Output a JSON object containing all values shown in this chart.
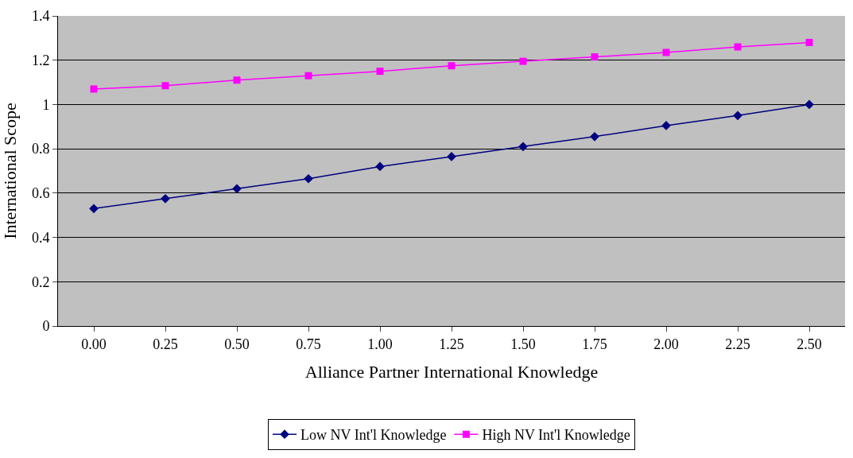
{
  "chart_data": {
    "type": "line",
    "xlabel": "Alliance Partner International Knowledge",
    "ylabel": "International Scope",
    "categories": [
      "0.00",
      "0.25",
      "0.50",
      "0.75",
      "1.00",
      "1.25",
      "1.50",
      "1.75",
      "2.00",
      "2.25",
      "2.50"
    ],
    "series": [
      {
        "name": "Low NV Int'l Knowledge",
        "color": "#000080",
        "marker": "diamond",
        "values": [
          0.53,
          0.575,
          0.62,
          0.665,
          0.72,
          0.765,
          0.81,
          0.855,
          0.905,
          0.95,
          1.0
        ]
      },
      {
        "name": "High NV Int'l Knowledge",
        "color": "#ff00ff",
        "marker": "square",
        "values": [
          1.07,
          1.085,
          1.11,
          1.13,
          1.15,
          1.175,
          1.195,
          1.215,
          1.235,
          1.26,
          1.28
        ]
      }
    ],
    "ylim": [
      0,
      1.4
    ],
    "yticks": [
      0,
      0.2,
      0.4,
      0.6,
      0.8,
      1,
      1.2,
      1.4
    ],
    "grid": "y",
    "legend": "bottom",
    "line_style": "solid"
  }
}
